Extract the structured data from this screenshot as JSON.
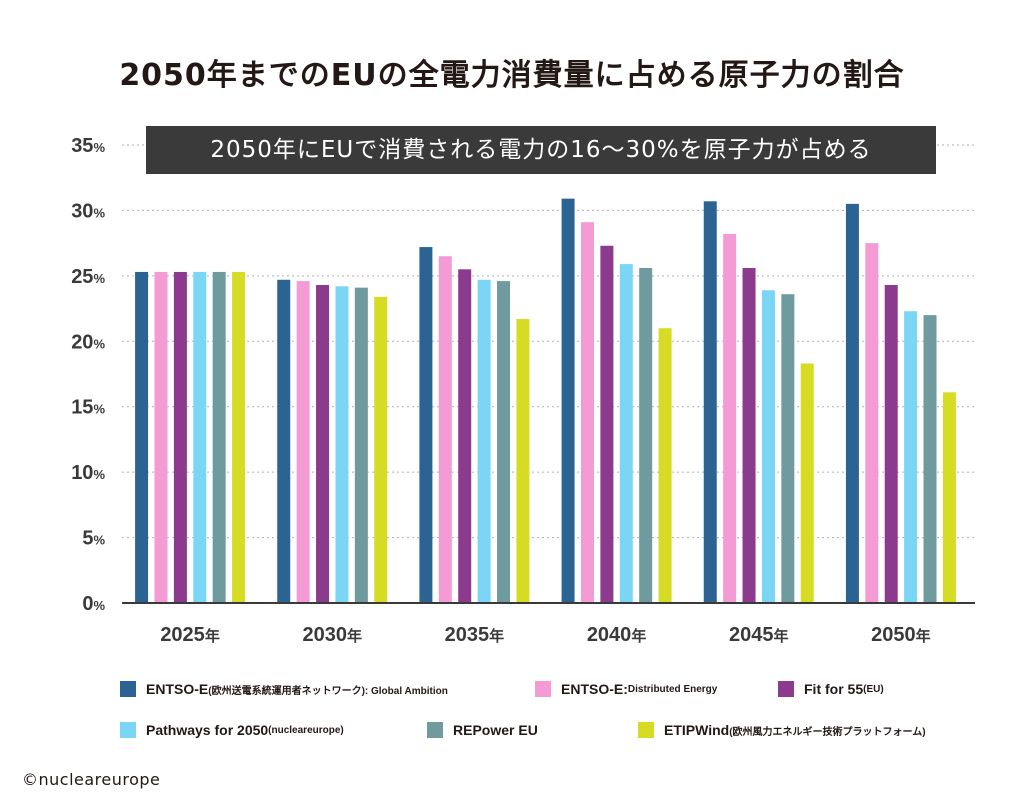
{
  "title": "2050年までのEUの全電力消費量に占める原子力の割合",
  "subtitle": "2050年にEUで消費される電力の16～30%を原子力が占める",
  "credit": "©nucleareurope",
  "chart_data": {
    "type": "bar",
    "title": "2050年までのEUの全電力消費量に占める原子力の割合",
    "subtitle": "2050年にEUで消費される電力の16～30%を原子力が占める",
    "categories": [
      "2025",
      "2030",
      "2035",
      "2040",
      "2045",
      "2050"
    ],
    "category_suffix": "年",
    "y_unit": "%",
    "ylim": [
      0,
      35
    ],
    "yticks": [
      "0",
      "5",
      "10",
      "15",
      "20",
      "25",
      "30",
      "35"
    ],
    "grid": true,
    "legend_position": "bottom",
    "series": [
      {
        "name": "ENTSO-E",
        "name_detail": "(欧州送電系統運用者ネットワーク): Global Ambition",
        "color": "#2b6393",
        "values": [
          25.3,
          24.7,
          27.2,
          30.9,
          30.7,
          30.5
        ]
      },
      {
        "name": "ENTSO-E:",
        "name_detail": " Distributed Energy",
        "color": "#f49ad4",
        "values": [
          25.3,
          24.6,
          26.5,
          29.1,
          28.2,
          27.5
        ]
      },
      {
        "name": "Fit for 55",
        "name_detail": "(EU)",
        "color": "#8b3a8e",
        "values": [
          25.3,
          24.3,
          25.5,
          27.3,
          25.6,
          24.3
        ]
      },
      {
        "name": "Pathways for 2050",
        "name_detail": " (nucleareurope)",
        "color": "#7ad6f4",
        "values": [
          25.3,
          24.2,
          24.7,
          25.9,
          23.9,
          22.3
        ]
      },
      {
        "name": "REPower EU",
        "name_detail": "",
        "color": "#6f9a9e",
        "values": [
          25.3,
          24.1,
          24.6,
          25.6,
          23.6,
          22.0
        ]
      },
      {
        "name": "ETIPWind",
        "name_detail": "(欧州風力エネルギー技術プラットフォーム)",
        "color": "#d6dc24",
        "values": [
          25.3,
          23.4,
          21.7,
          21.0,
          18.3,
          16.1
        ]
      }
    ]
  }
}
